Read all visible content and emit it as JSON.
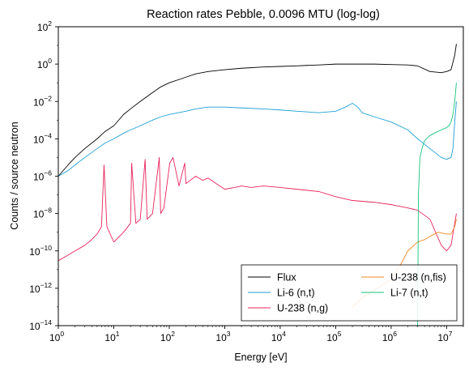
{
  "chart_data": {
    "type": "line",
    "title": "Reaction rates Pebble, 0.0096 MTU (log-log)",
    "xlabel": "Energy [eV]",
    "ylabel": "Counts / source neutron",
    "xscale": "log",
    "yscale": "log",
    "xlim": [
      1,
      20000000
    ],
    "ylim": [
      1e-14,
      100
    ],
    "grid": false,
    "legend_position": "lower-right",
    "x_ticks": [
      {
        "value": 1,
        "base": "10",
        "exp": "0"
      },
      {
        "value": 10,
        "base": "10",
        "exp": "1"
      },
      {
        "value": 100,
        "base": "10",
        "exp": "2"
      },
      {
        "value": 1000,
        "base": "10",
        "exp": "3"
      },
      {
        "value": 10000,
        "base": "10",
        "exp": "4"
      },
      {
        "value": 100000,
        "base": "10",
        "exp": "5"
      },
      {
        "value": 1000000,
        "base": "10",
        "exp": "6"
      },
      {
        "value": 10000000,
        "base": "10",
        "exp": "7"
      }
    ],
    "y_ticks": [
      {
        "value": 1e-14,
        "base": "10",
        "exp": "−14"
      },
      {
        "value": 1e-12,
        "base": "10",
        "exp": "−12"
      },
      {
        "value": 1e-10,
        "base": "10",
        "exp": "−10"
      },
      {
        "value": 1e-08,
        "base": "10",
        "exp": "−8"
      },
      {
        "value": 1e-06,
        "base": "10",
        "exp": "−6"
      },
      {
        "value": 0.0001,
        "base": "10",
        "exp": "−4"
      },
      {
        "value": 0.01,
        "base": "10",
        "exp": "−2"
      },
      {
        "value": 1,
        "base": "10",
        "exp": "0"
      },
      {
        "value": 100,
        "base": "10",
        "exp": "2"
      }
    ],
    "series": [
      {
        "name": "Flux",
        "color": "#000000",
        "x": [
          1,
          1.5,
          2,
          3,
          5,
          7,
          10,
          15,
          20,
          30,
          50,
          70,
          100,
          200,
          300,
          500,
          1000,
          2000,
          5000,
          10000,
          20000,
          30000,
          50000,
          100000,
          200000,
          500000,
          1000000,
          2000000,
          3000000,
          5000000,
          8000000,
          10000000,
          12000000,
          14000000,
          15000000
        ],
        "y": [
          1e-06,
          4e-06,
          1e-05,
          3e-05,
          0.0001,
          0.00025,
          0.0005,
          0.002,
          0.004,
          0.01,
          0.03,
          0.06,
          0.1,
          0.2,
          0.3,
          0.4,
          0.5,
          0.6,
          0.7,
          0.75,
          0.8,
          0.85,
          0.9,
          1.0,
          1.0,
          1.0,
          0.95,
          0.9,
          0.8,
          0.4,
          0.35,
          0.4,
          0.5,
          3,
          12
        ]
      },
      {
        "name": "Li-6 (n,t)",
        "color": "#1f9fd6",
        "x": [
          1,
          1.5,
          2,
          3,
          5,
          7,
          10,
          15,
          20,
          30,
          50,
          70,
          100,
          200,
          300,
          500,
          1000,
          2000,
          5000,
          10000,
          20000,
          50000,
          100000,
          150000,
          200000,
          250000,
          300000,
          500000,
          1000000,
          2000000,
          3000000,
          5000000,
          8000000,
          10000000,
          12000000,
          13000000,
          14000000,
          15000000
        ],
        "y": [
          1e-06,
          2e-06,
          4e-06,
          1e-05,
          3e-05,
          6e-05,
          0.0001,
          0.0002,
          0.0003,
          0.0005,
          0.001,
          0.0015,
          0.002,
          0.003,
          0.004,
          0.005,
          0.005,
          0.0045,
          0.004,
          0.0035,
          0.003,
          0.0025,
          0.003,
          0.005,
          0.008,
          0.005,
          0.0025,
          0.0015,
          0.0008,
          0.0003,
          0.0001,
          3e-05,
          1e-05,
          8e-06,
          1e-05,
          3e-05,
          0.0008,
          0.01
        ]
      },
      {
        "name": "U-238 (n,g)",
        "color": "#e8245c",
        "x": [
          1,
          1.5,
          2,
          3,
          4,
          5,
          6,
          6.67,
          7.5,
          10,
          15,
          20,
          21,
          25,
          30,
          36.7,
          40,
          50,
          66,
          70,
          80,
          102,
          117,
          150,
          190,
          200,
          300,
          400,
          500,
          700,
          1000,
          1500,
          2000,
          3000,
          5000,
          10000,
          20000,
          50000,
          100000,
          200000,
          500000,
          1000000,
          2000000,
          3000000,
          5000000,
          7000000,
          8000000,
          10000000,
          12000000,
          14000000,
          15000000
        ],
        "y": [
          3e-11,
          6e-11,
          1e-10,
          2e-10,
          4e-10,
          8e-10,
          2e-09,
          4e-06,
          2e-09,
          3e-10,
          1e-09,
          3e-09,
          5e-06,
          3e-09,
          5e-09,
          8e-06,
          5e-09,
          1e-08,
          1e-05,
          1e-08,
          2e-08,
          5e-06,
          1e-05,
          3e-07,
          5e-06,
          4e-07,
          1e-06,
          6e-07,
          8e-07,
          4e-07,
          2e-07,
          2.5e-07,
          3e-07,
          2.5e-07,
          3e-07,
          2.5e-07,
          2e-07,
          1.5e-07,
          8e-08,
          5e-08,
          4e-08,
          3e-08,
          2e-08,
          1.5e-08,
          5e-09,
          5e-10,
          2e-10,
          1e-10,
          2e-10,
          3e-09,
          1e-08
        ]
      },
      {
        "name": "U-238 (n,fis)",
        "color": "#ef8a2a",
        "x": [
          200000,
          300000,
          500000,
          700000,
          1000000,
          1500000,
          2000000,
          3000000,
          4000000,
          5000000,
          7000000,
          10000000,
          12000000,
          14000000,
          15000000
        ],
        "y": [
          1e-13,
          3e-13,
          8e-13,
          1.5e-12,
          3e-12,
          2e-11,
          1e-10,
          3e-10,
          4e-10,
          6e-10,
          1e-09,
          8e-10,
          8e-10,
          2e-09,
          5e-09
        ]
      },
      {
        "name": "Li-7 (n,t)",
        "color": "#18c37e",
        "x": [
          3000000,
          3100000,
          3300000,
          3600000,
          4000000,
          5000000,
          6000000,
          7000000,
          8000000,
          9000000,
          10000000,
          11000000,
          12000000,
          13000000,
          14000000,
          15000000
        ],
        "y": [
          1e-14,
          1e-07,
          1e-05,
          3e-05,
          8e-05,
          0.00015,
          0.0002,
          0.00025,
          0.0003,
          0.00035,
          0.0004,
          0.0005,
          0.0008,
          0.002,
          0.01,
          0.1
        ]
      }
    ]
  }
}
